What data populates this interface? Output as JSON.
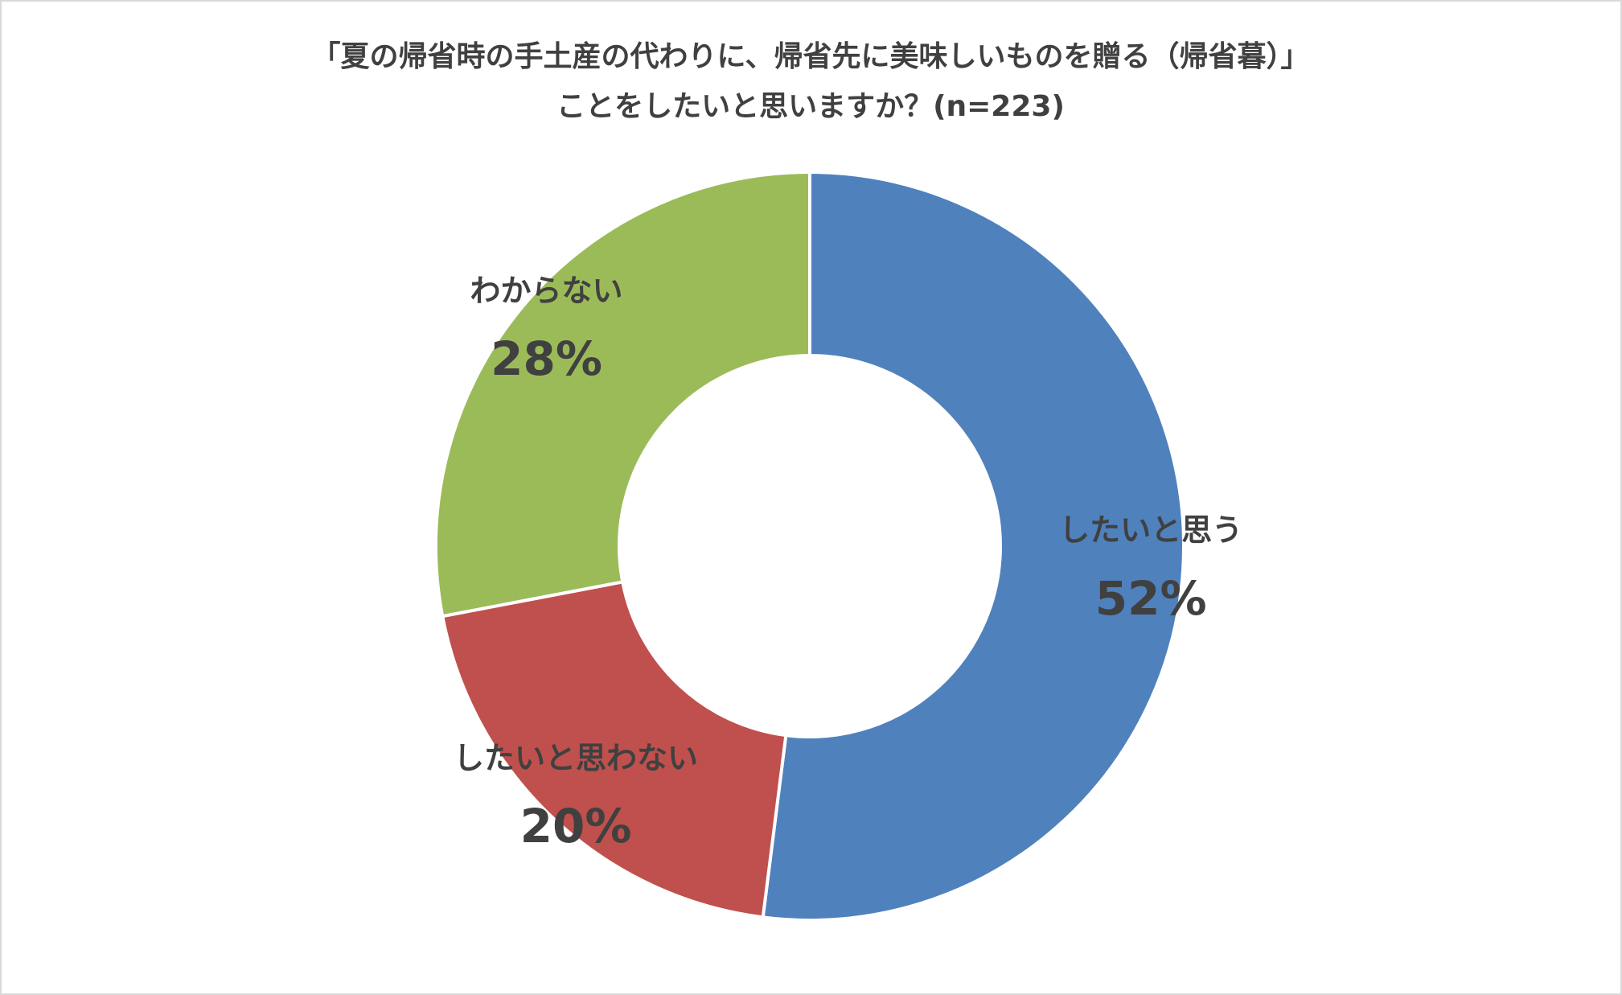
{
  "chart_data": {
    "type": "donut",
    "title": [
      "「夏の帰省時の手土産の代わりに、帰省先に美味しいものを贈る（帰省暮）」",
      "ことをしたいと思いますか？(n=223)"
    ],
    "categories": [
      "したいと思う",
      "したいと思わない",
      "わからない"
    ],
    "values": [
      52,
      20,
      28
    ],
    "value_labels": [
      "52%",
      "20%",
      "28%"
    ],
    "colors": [
      "#4f81bd",
      "#c0504d",
      "#9bbb59"
    ]
  }
}
